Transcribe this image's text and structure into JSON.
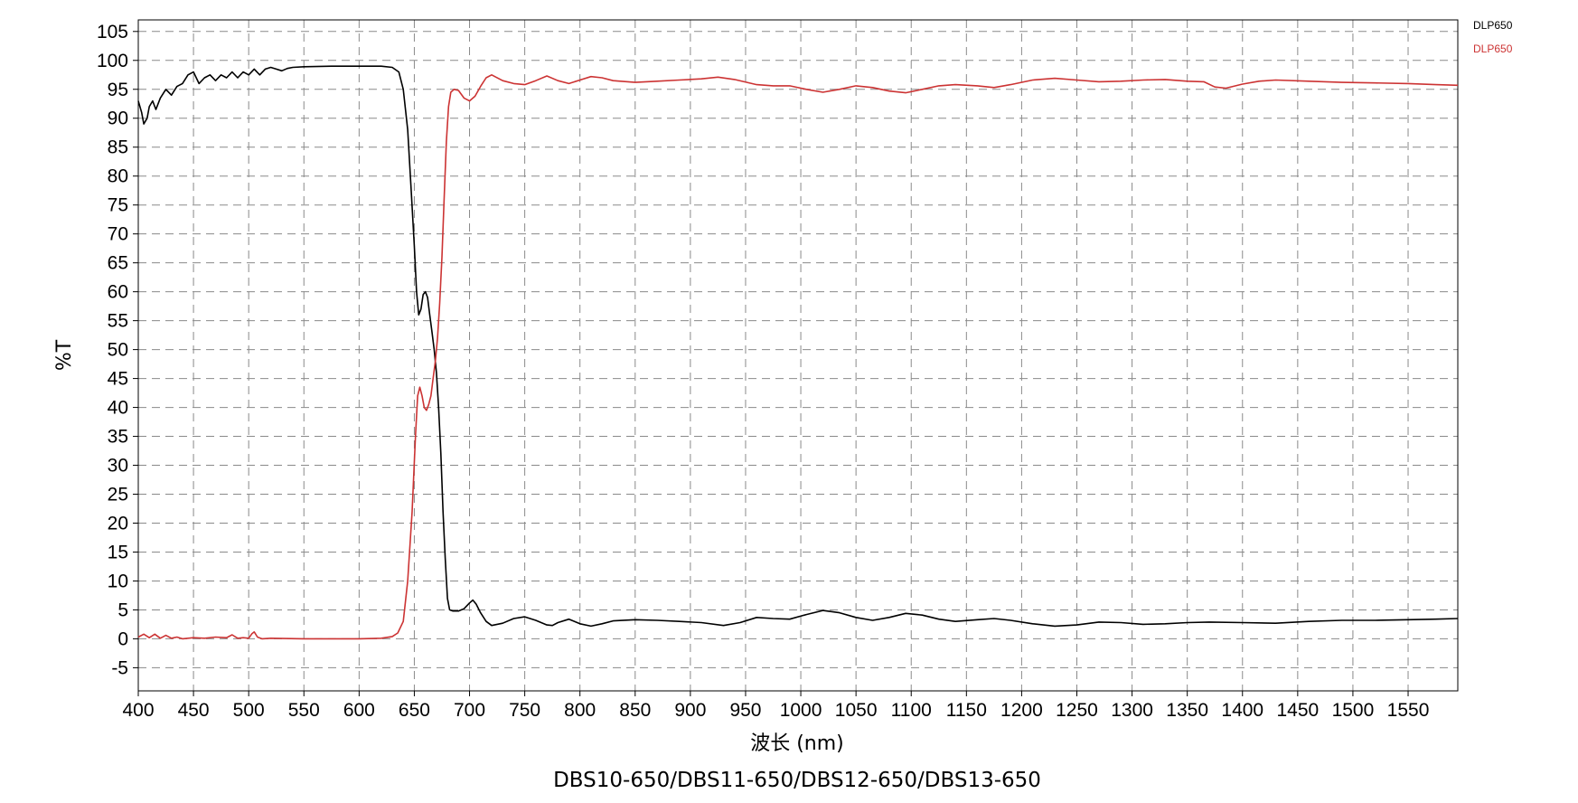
{
  "chart_data": {
    "type": "line",
    "title": "",
    "caption": "DBS10-650/DBS11-650/DBS12-650/DBS13-650",
    "xlabel": "波长 (nm)",
    "ylabel": "%T",
    "xlim": [
      400,
      1595
    ],
    "ylim": [
      -9,
      107
    ],
    "x_ticks": [
      400,
      450,
      500,
      550,
      600,
      650,
      700,
      750,
      800,
      850,
      900,
      950,
      1000,
      1050,
      1100,
      1150,
      1200,
      1250,
      1300,
      1350,
      1400,
      1450,
      1500,
      1550
    ],
    "y_ticks": [
      -5,
      0,
      5,
      10,
      15,
      20,
      25,
      30,
      35,
      40,
      45,
      50,
      55,
      60,
      65,
      70,
      75,
      80,
      85,
      90,
      95,
      100,
      105
    ],
    "grid": true,
    "grid_style": "dashed",
    "legend_position": "top-right",
    "series": [
      {
        "name": "DLP650",
        "color": "#000000",
        "points": [
          [
            400,
            93
          ],
          [
            403,
            91
          ],
          [
            405,
            89
          ],
          [
            408,
            90
          ],
          [
            410,
            92
          ],
          [
            413,
            93
          ],
          [
            416,
            91.5
          ],
          [
            420,
            93.5
          ],
          [
            425,
            95
          ],
          [
            430,
            94
          ],
          [
            435,
            95.5
          ],
          [
            440,
            96
          ],
          [
            445,
            97.5
          ],
          [
            450,
            98
          ],
          [
            455,
            96
          ],
          [
            460,
            97
          ],
          [
            465,
            97.5
          ],
          [
            470,
            96.5
          ],
          [
            475,
            97.5
          ],
          [
            480,
            97
          ],
          [
            485,
            98
          ],
          [
            490,
            97
          ],
          [
            495,
            98
          ],
          [
            500,
            97.5
          ],
          [
            505,
            98.5
          ],
          [
            510,
            97.5
          ],
          [
            515,
            98.5
          ],
          [
            520,
            98.8
          ],
          [
            525,
            98.5
          ],
          [
            530,
            98.2
          ],
          [
            535,
            98.6
          ],
          [
            540,
            98.8
          ],
          [
            550,
            98.9
          ],
          [
            575,
            99
          ],
          [
            600,
            99
          ],
          [
            620,
            99
          ],
          [
            630,
            98.8
          ],
          [
            636,
            98
          ],
          [
            640,
            95
          ],
          [
            644,
            88
          ],
          [
            647,
            78
          ],
          [
            650,
            68
          ],
          [
            652,
            60
          ],
          [
            654,
            56
          ],
          [
            656,
            57
          ],
          [
            658,
            59.5
          ],
          [
            660,
            60
          ],
          [
            662,
            59
          ],
          [
            664,
            56
          ],
          [
            666,
            53
          ],
          [
            668,
            50
          ],
          [
            670,
            46
          ],
          [
            672,
            40
          ],
          [
            674,
            32
          ],
          [
            676,
            22
          ],
          [
            678,
            14
          ],
          [
            680,
            7
          ],
          [
            682,
            5
          ],
          [
            685,
            4.8
          ],
          [
            690,
            4.8
          ],
          [
            695,
            5.2
          ],
          [
            700,
            6.2
          ],
          [
            703,
            6.7
          ],
          [
            706,
            6
          ],
          [
            710,
            4.5
          ],
          [
            715,
            3
          ],
          [
            720,
            2.3
          ],
          [
            730,
            2.7
          ],
          [
            740,
            3.5
          ],
          [
            750,
            3.8
          ],
          [
            760,
            3.2
          ],
          [
            770,
            2.4
          ],
          [
            775,
            2.3
          ],
          [
            780,
            2.8
          ],
          [
            790,
            3.4
          ],
          [
            800,
            2.6
          ],
          [
            810,
            2.2
          ],
          [
            820,
            2.6
          ],
          [
            830,
            3.1
          ],
          [
            850,
            3.3
          ],
          [
            870,
            3.2
          ],
          [
            890,
            3
          ],
          [
            910,
            2.8
          ],
          [
            930,
            2.3
          ],
          [
            945,
            2.8
          ],
          [
            960,
            3.7
          ],
          [
            975,
            3.5
          ],
          [
            990,
            3.4
          ],
          [
            1005,
            4.2
          ],
          [
            1020,
            4.9
          ],
          [
            1035,
            4.5
          ],
          [
            1050,
            3.7
          ],
          [
            1065,
            3.2
          ],
          [
            1080,
            3.7
          ],
          [
            1095,
            4.4
          ],
          [
            1110,
            4.1
          ],
          [
            1125,
            3.4
          ],
          [
            1140,
            3
          ],
          [
            1160,
            3.3
          ],
          [
            1175,
            3.5
          ],
          [
            1190,
            3.2
          ],
          [
            1210,
            2.6
          ],
          [
            1230,
            2.2
          ],
          [
            1250,
            2.4
          ],
          [
            1270,
            2.9
          ],
          [
            1290,
            2.8
          ],
          [
            1310,
            2.5
          ],
          [
            1330,
            2.6
          ],
          [
            1350,
            2.8
          ],
          [
            1370,
            2.9
          ],
          [
            1400,
            2.8
          ],
          [
            1430,
            2.7
          ],
          [
            1460,
            3
          ],
          [
            1490,
            3.2
          ],
          [
            1520,
            3.2
          ],
          [
            1550,
            3.3
          ],
          [
            1575,
            3.4
          ],
          [
            1595,
            3.5
          ]
        ]
      },
      {
        "name": "DLP650",
        "color": "#cc3333",
        "points": [
          [
            400,
            0.3
          ],
          [
            405,
            0.8
          ],
          [
            410,
            0.2
          ],
          [
            415,
            0.8
          ],
          [
            420,
            0.1
          ],
          [
            425,
            0.6
          ],
          [
            430,
            0.1
          ],
          [
            435,
            0.3
          ],
          [
            440,
            0
          ],
          [
            450,
            0.2
          ],
          [
            460,
            0.1
          ],
          [
            470,
            0.3
          ],
          [
            480,
            0.2
          ],
          [
            485,
            0.7
          ],
          [
            490,
            0.1
          ],
          [
            495,
            0.2
          ],
          [
            500,
            0.1
          ],
          [
            503,
            0.9
          ],
          [
            505,
            1.2
          ],
          [
            508,
            0.3
          ],
          [
            512,
            0
          ],
          [
            520,
            0.1
          ],
          [
            550,
            0
          ],
          [
            600,
            0
          ],
          [
            620,
            0.1
          ],
          [
            630,
            0.4
          ],
          [
            635,
            1
          ],
          [
            640,
            3
          ],
          [
            644,
            10
          ],
          [
            648,
            22
          ],
          [
            651,
            35
          ],
          [
            653,
            42
          ],
          [
            655,
            43.5
          ],
          [
            657,
            42
          ],
          [
            659,
            40
          ],
          [
            661,
            39.5
          ],
          [
            663,
            40.5
          ],
          [
            665,
            42
          ],
          [
            667,
            45
          ],
          [
            669,
            48
          ],
          [
            671,
            52
          ],
          [
            673,
            58
          ],
          [
            675,
            66
          ],
          [
            677,
            76
          ],
          [
            679,
            86
          ],
          [
            681,
            92
          ],
          [
            683,
            94.5
          ],
          [
            686,
            95
          ],
          [
            690,
            94.8
          ],
          [
            695,
            93.5
          ],
          [
            700,
            93
          ],
          [
            705,
            93.8
          ],
          [
            710,
            95.5
          ],
          [
            715,
            97
          ],
          [
            720,
            97.5
          ],
          [
            730,
            96.5
          ],
          [
            740,
            96
          ],
          [
            750,
            95.8
          ],
          [
            760,
            96.5
          ],
          [
            770,
            97.3
          ],
          [
            780,
            96.5
          ],
          [
            790,
            96
          ],
          [
            800,
            96.6
          ],
          [
            810,
            97.2
          ],
          [
            820,
            97
          ],
          [
            830,
            96.5
          ],
          [
            850,
            96.2
          ],
          [
            870,
            96.4
          ],
          [
            890,
            96.6
          ],
          [
            910,
            96.8
          ],
          [
            925,
            97.1
          ],
          [
            940,
            96.7
          ],
          [
            960,
            95.8
          ],
          [
            975,
            95.6
          ],
          [
            990,
            95.6
          ],
          [
            1005,
            95
          ],
          [
            1020,
            94.5
          ],
          [
            1035,
            95
          ],
          [
            1050,
            95.6
          ],
          [
            1065,
            95.3
          ],
          [
            1080,
            94.7
          ],
          [
            1095,
            94.4
          ],
          [
            1110,
            95
          ],
          [
            1125,
            95.6
          ],
          [
            1140,
            95.8
          ],
          [
            1160,
            95.6
          ],
          [
            1175,
            95.3
          ],
          [
            1190,
            95.8
          ],
          [
            1210,
            96.6
          ],
          [
            1230,
            96.9
          ],
          [
            1250,
            96.6
          ],
          [
            1270,
            96.3
          ],
          [
            1290,
            96.4
          ],
          [
            1310,
            96.6
          ],
          [
            1330,
            96.7
          ],
          [
            1350,
            96.4
          ],
          [
            1365,
            96.3
          ],
          [
            1375,
            95.4
          ],
          [
            1385,
            95.2
          ],
          [
            1400,
            95.9
          ],
          [
            1415,
            96.4
          ],
          [
            1430,
            96.6
          ],
          [
            1460,
            96.4
          ],
          [
            1490,
            96.2
          ],
          [
            1520,
            96.1
          ],
          [
            1550,
            96
          ],
          [
            1575,
            95.8
          ],
          [
            1595,
            95.7
          ]
        ]
      }
    ]
  }
}
